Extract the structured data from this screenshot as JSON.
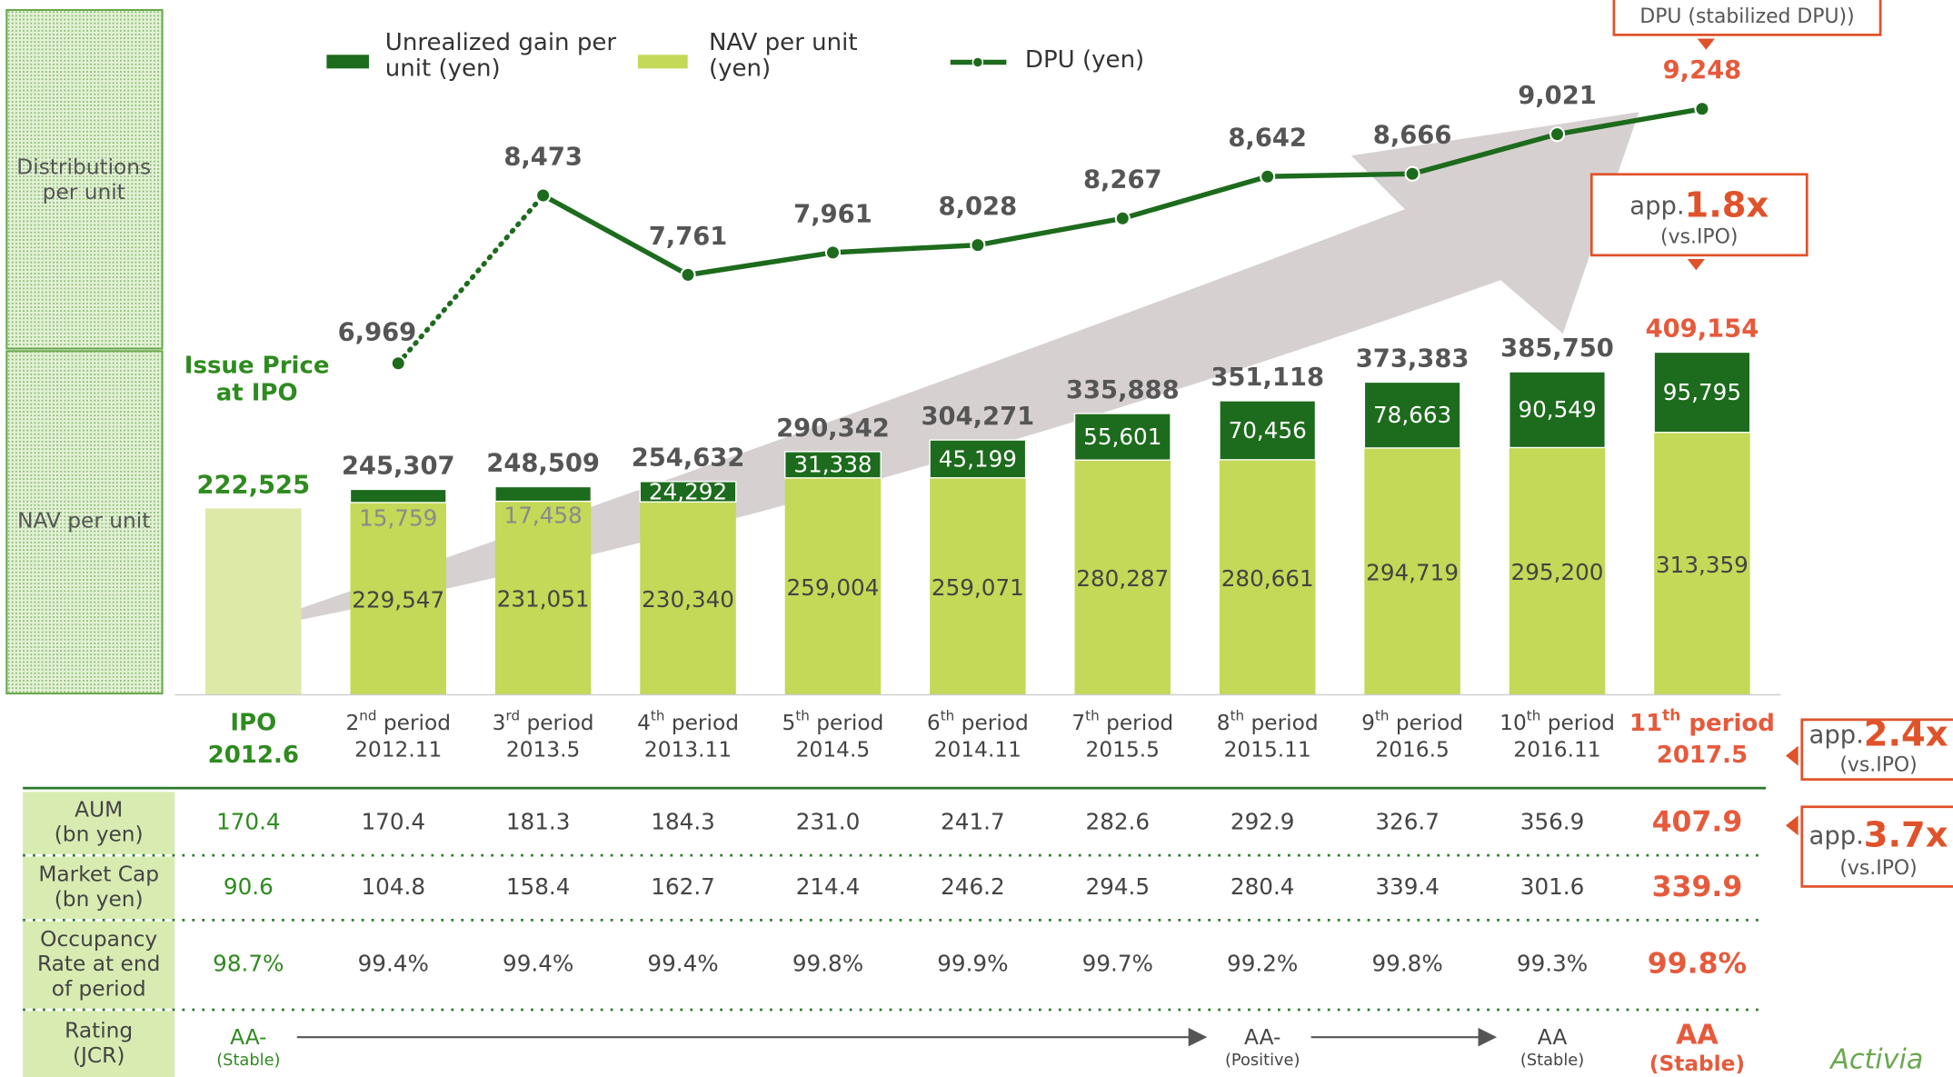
{
  "chart_data": {
    "type": "bar",
    "stacked": true,
    "categories": [
      "IPO",
      "2nd period",
      "3rd period",
      "4th period",
      "5th period",
      "6th period",
      "7th period",
      "8th period",
      "9th period",
      "10th period",
      "11th period"
    ],
    "category_dates": [
      "2012.6",
      "2012.11",
      "2013.5",
      "2013.11",
      "2014.5",
      "2014.11",
      "2015.5",
      "2015.11",
      "2016.5",
      "2016.11",
      "2017.5"
    ],
    "series": [
      {
        "name": "NAV per unit (yen)",
        "color": "#c3d957",
        "values": [
          222525,
          229547,
          231051,
          230340,
          259004,
          259071,
          280287,
          280661,
          294719,
          295200,
          313359
        ],
        "value_labels": [
          null,
          "229,547",
          "231,051",
          "230,340",
          "259,004",
          "259,071",
          "280,287",
          "280,661",
          "294,719",
          "295,200",
          "313,359"
        ]
      },
      {
        "name": "Unrealized gain per unit (yen)",
        "color": "#1d6b1d",
        "values": [
          null,
          15759,
          17458,
          24292,
          31338,
          45199,
          55601,
          70456,
          78663,
          90549,
          95795
        ],
        "value_labels": [
          null,
          "15,759",
          "17,458",
          "24,292",
          "31,338",
          "45,199",
          "55,601",
          "70,456",
          "78,663",
          "90,549",
          "95,795"
        ]
      },
      {
        "name": "DPU (yen)",
        "type": "line",
        "axis": "y2",
        "color": "#1d6b1d",
        "values": [
          null,
          6969,
          8473,
          7761,
          7961,
          8028,
          8267,
          8642,
          8666,
          9021,
          9248
        ],
        "value_labels": [
          null,
          "6,969",
          "8,473",
          "7,761",
          "7,961",
          "8,028",
          "8,267",
          "8,642",
          "8,666",
          "9,021",
          "9,248"
        ]
      }
    ],
    "total_labels": [
      "222,525",
      "245,307",
      "248,509",
      "254,632",
      "290,342",
      "304,271",
      "335,888",
      "351,118",
      "373,383",
      "385,750",
      "409,154"
    ],
    "ylim": [
      0,
      800000
    ],
    "y2lim": [
      4000,
      10000
    ],
    "ipo_bar_color": "#dde9a6",
    "label_color": "#555555",
    "ipo_text_color": "#2e8b1f",
    "highlight_color": "#e65a3c"
  },
  "panels": [
    [
      "Distributions",
      "per unit"
    ],
    [
      "NAV per unit"
    ]
  ],
  "annotations": {
    "issue_price": [
      "Issue Price",
      "at IPO"
    ],
    "dpu_box": "DPU (stabilized DPU))",
    "dpu_growth": {
      "prefix": "app.",
      "value": "1.8x",
      "note": "(vs.IPO)"
    },
    "aum_growth": {
      "prefix": "app.",
      "value": "2.4x",
      "note": "(vs.IPO)"
    },
    "cap_growth": {
      "prefix": "app.",
      "value": "3.7x",
      "note": "(vs.IPO)"
    },
    "logo": "Activia"
  },
  "table": {
    "rows": [
      {
        "label": [
          "AUM",
          "(bn yen)"
        ],
        "cells": [
          "170.4",
          "170.4",
          "181.3",
          "184.3",
          "231.0",
          "241.7",
          "282.6",
          "292.9",
          "326.7",
          "356.9",
          "407.9"
        ]
      },
      {
        "label": [
          "Market Cap",
          "(bn yen)"
        ],
        "cells": [
          "90.6",
          "104.8",
          "158.4",
          "162.7",
          "214.4",
          "246.2",
          "294.5",
          "280.4",
          "339.4",
          "301.6",
          "339.9"
        ]
      },
      {
        "label": [
          "Occupancy",
          "Rate at end",
          "of period"
        ],
        "cells": [
          "98.7%",
          "99.4%",
          "99.4%",
          "99.4%",
          "99.8%",
          "99.9%",
          "99.7%",
          "99.2%",
          "99.8%",
          "99.3%",
          "99.8%"
        ]
      }
    ],
    "rating": {
      "label": [
        "Rating",
        "(JCR)"
      ],
      "cells": [
        {
          "grade": "AA-",
          "outlook": "(Stable)"
        },
        null,
        null,
        null,
        null,
        null,
        null,
        {
          "grade": "AA-",
          "outlook": "(Positive)"
        },
        null,
        {
          "grade": "AA",
          "outlook": "(Stable)"
        },
        {
          "grade": "AA",
          "outlook": "(Stable)"
        }
      ]
    }
  }
}
